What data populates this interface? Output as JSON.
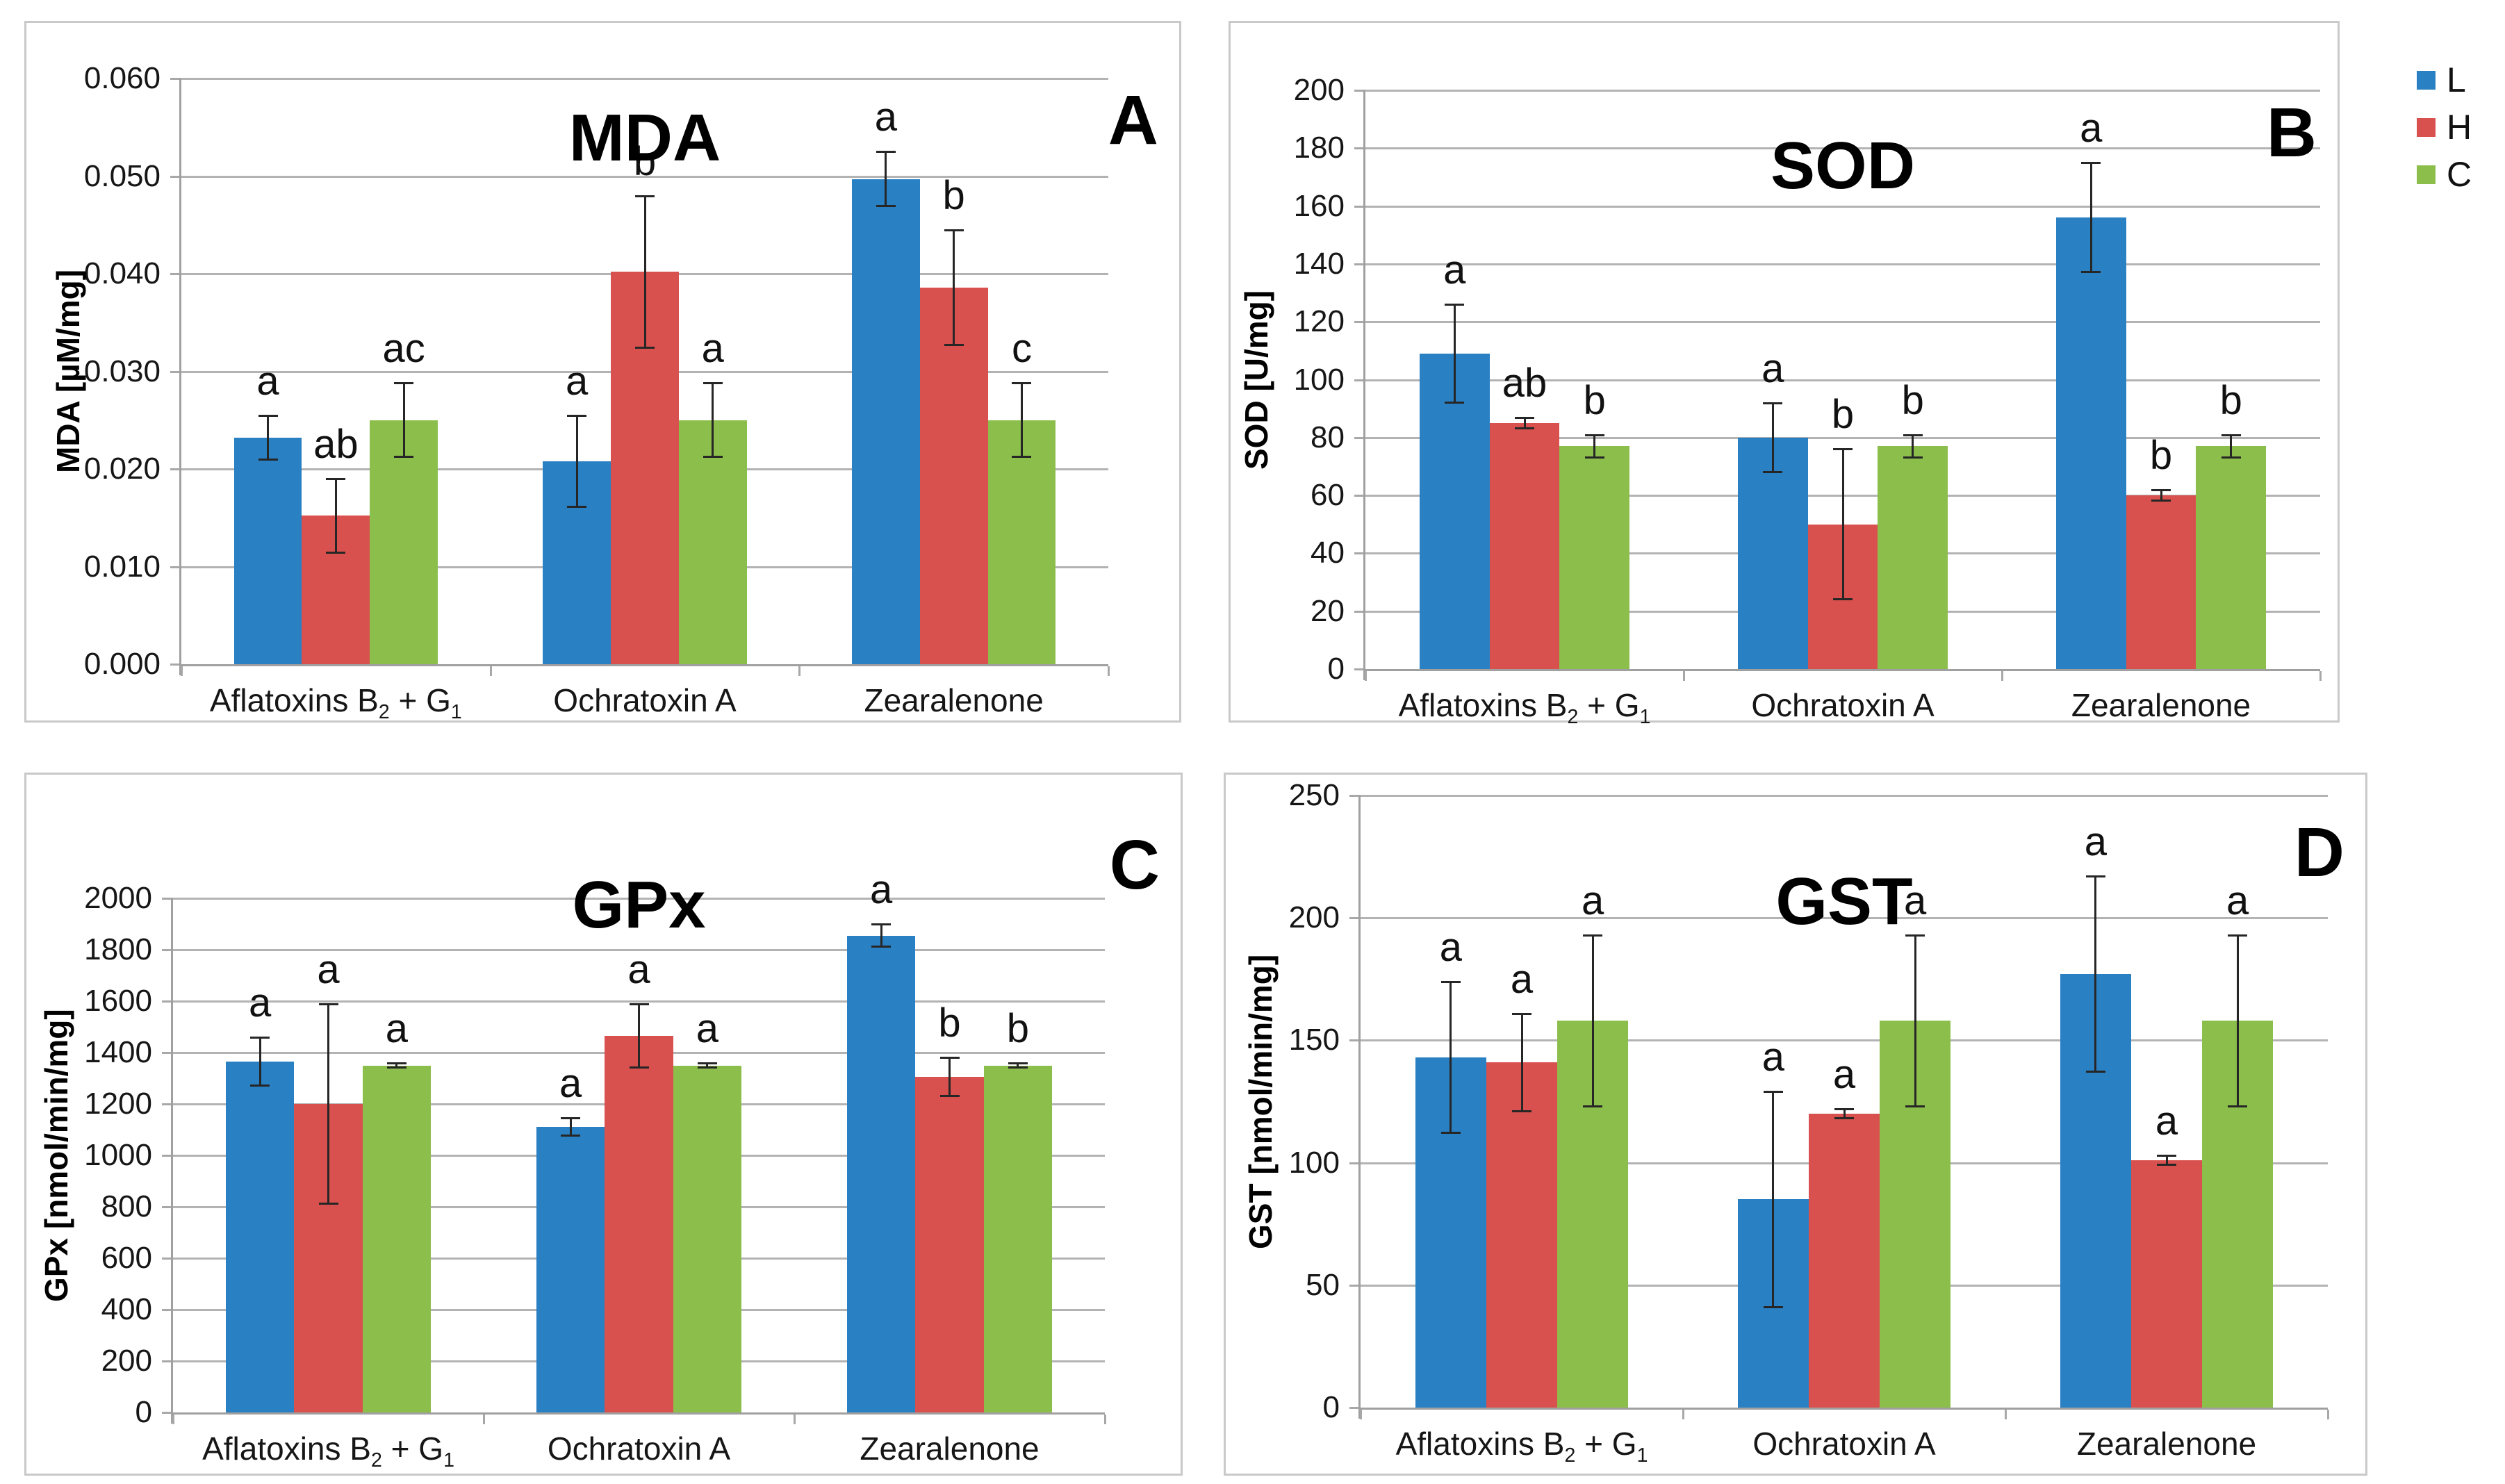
{
  "legend": {
    "position": "outside-top-right",
    "items": [
      {
        "label": "L",
        "color": "#2980C3"
      },
      {
        "label": "H",
        "color": "#D9514E"
      },
      {
        "label": "C",
        "color": "#8CBE4B"
      }
    ]
  },
  "chart_data": [
    {
      "id": "mda",
      "type": "bar",
      "title": "MDA",
      "panel_letter": "A",
      "ylabel": "MDA [µM/mg]",
      "xlabel": "",
      "ylim": [
        0,
        0.06
      ],
      "ystep": 0.01,
      "grid": true,
      "yticks": [
        "0.000",
        "0.010",
        "0.020",
        "0.030",
        "0.040",
        "0.050",
        "0.060"
      ],
      "categories": [
        {
          "label": "Aflatoxins B₂ + G₁",
          "segments": [
            {
              "t": "Aflatoxins B"
            },
            {
              "t": "2",
              "sub": true
            },
            {
              "t": " + G"
            },
            {
              "t": "1",
              "sub": true
            }
          ]
        },
        {
          "label": "Ochratoxin A",
          "segments": [
            {
              "t": "Ochratoxin A"
            }
          ]
        },
        {
          "label": "Zearalenone",
          "segments": [
            {
              "t": "Zearalenone"
            }
          ]
        }
      ],
      "series": [
        {
          "name": "L",
          "color": "#2980C3",
          "values": [
            0.0232,
            0.0208,
            0.0497
          ],
          "errors": [
            0.0023,
            0.0047,
            0.0028
          ],
          "sig_letters": [
            "a",
            "a",
            "a"
          ]
        },
        {
          "name": "H",
          "color": "#D9514E",
          "values": [
            0.0152,
            0.0402,
            0.0386
          ],
          "errors": [
            0.0038,
            0.0078,
            0.0059
          ],
          "sig_letters": [
            "ab",
            "b",
            "b"
          ]
        },
        {
          "name": "C",
          "color": "#8CBE4B",
          "values": [
            0.025,
            0.025,
            0.025
          ],
          "errors": [
            0.0038,
            0.0038,
            0.0038
          ],
          "sig_letters": [
            "ac",
            "a",
            "c"
          ]
        }
      ]
    },
    {
      "id": "sod",
      "type": "bar",
      "title": "SOD",
      "panel_letter": "B",
      "ylabel": "SOD [U/mg]",
      "xlabel": "",
      "ylim": [
        0,
        200
      ],
      "ystep": 20,
      "grid": true,
      "yticks": [
        "0",
        "20",
        "40",
        "60",
        "80",
        "100",
        "120",
        "140",
        "160",
        "180",
        "200"
      ],
      "categories": [
        {
          "label": "Aflatoxins B₂ + G₁",
          "segments": [
            {
              "t": "Aflatoxins B"
            },
            {
              "t": "2",
              "sub": true
            },
            {
              "t": " + G"
            },
            {
              "t": "1",
              "sub": true
            }
          ]
        },
        {
          "label": "Ochratoxin A",
          "segments": [
            {
              "t": "Ochratoxin A"
            }
          ]
        },
        {
          "label": "Zearalenone",
          "segments": [
            {
              "t": "Zearalenone"
            }
          ]
        }
      ],
      "series": [
        {
          "name": "L",
          "color": "#2980C3",
          "values": [
            109,
            80,
            156
          ],
          "errors": [
            17,
            12,
            19
          ],
          "sig_letters": [
            "a",
            "a",
            "a"
          ]
        },
        {
          "name": "H",
          "color": "#D9514E",
          "values": [
            85,
            50,
            60
          ],
          "errors": [
            2,
            26,
            2
          ],
          "sig_letters": [
            "ab",
            "b",
            "b"
          ]
        },
        {
          "name": "C",
          "color": "#8CBE4B",
          "values": [
            77,
            77,
            77
          ],
          "errors": [
            4,
            4,
            4
          ],
          "sig_letters": [
            "b",
            "b",
            "b"
          ]
        }
      ]
    },
    {
      "id": "gpx",
      "type": "bar",
      "title": "GPx",
      "panel_letter": "C",
      "ylabel": "GPx [nmol/min/mg]",
      "xlabel": "",
      "ylim": [
        0,
        2000
      ],
      "ystep": 200,
      "grid": true,
      "yticks": [
        "0",
        "200",
        "400",
        "600",
        "800",
        "1000",
        "1200",
        "1400",
        "1600",
        "1800",
        "2000"
      ],
      "categories": [
        {
          "label": "Aflatoxins B₂ + G₁",
          "segments": [
            {
              "t": "Aflatoxins B"
            },
            {
              "t": "2",
              "sub": true
            },
            {
              "t": " + G"
            },
            {
              "t": "1",
              "sub": true
            }
          ]
        },
        {
          "label": "Ochratoxin A",
          "segments": [
            {
              "t": "Ochratoxin A"
            }
          ]
        },
        {
          "label": "Zearalenone",
          "segments": [
            {
              "t": "Zearalenone"
            }
          ]
        }
      ],
      "series": [
        {
          "name": "L",
          "color": "#2980C3",
          "values": [
            1365,
            1110,
            1855
          ],
          "errors": [
            95,
            35,
            45
          ],
          "sig_letters": [
            "a",
            "a",
            "a"
          ]
        },
        {
          "name": "H",
          "color": "#D9514E",
          "values": [
            1200,
            1465,
            1305
          ],
          "errors": [
            390,
            125,
            75
          ],
          "sig_letters": [
            "a",
            "a",
            "b"
          ]
        },
        {
          "name": "C",
          "color": "#8CBE4B",
          "values": [
            1350,
            1350,
            1350
          ],
          "errors": [
            10,
            10,
            10
          ],
          "sig_letters": [
            "a",
            "a",
            "b"
          ]
        }
      ]
    },
    {
      "id": "gst",
      "type": "bar",
      "title": "GST",
      "panel_letter": "D",
      "ylabel": "GST [nmol/min/mg]",
      "xlabel": "",
      "ylim": [
        0,
        250
      ],
      "ystep": 50,
      "grid": true,
      "yticks": [
        "0",
        "50",
        "100",
        "150",
        "200",
        "250"
      ],
      "categories": [
        {
          "label": "Aflatoxins B₂ + G₁",
          "segments": [
            {
              "t": "Aflatoxins B"
            },
            {
              "t": "2",
              "sub": true
            },
            {
              "t": " + G"
            },
            {
              "t": "1",
              "sub": true
            }
          ]
        },
        {
          "label": "Ochratoxin A",
          "segments": [
            {
              "t": "Ochratoxin A"
            }
          ]
        },
        {
          "label": "Zearalenone",
          "segments": [
            {
              "t": "Zearalenone"
            }
          ]
        }
      ],
      "series": [
        {
          "name": "L",
          "color": "#2980C3",
          "values": [
            143,
            85,
            177
          ],
          "errors": [
            31,
            44,
            40
          ],
          "sig_letters": [
            "a",
            "a",
            "a"
          ]
        },
        {
          "name": "H",
          "color": "#D9514E",
          "values": [
            141,
            120,
            101
          ],
          "errors": [
            20,
            2,
            2
          ],
          "sig_letters": [
            "a",
            "a",
            "a"
          ]
        },
        {
          "name": "C",
          "color": "#8CBE4B",
          "values": [
            158,
            158,
            158
          ],
          "errors": [
            35,
            35,
            35
          ],
          "sig_letters": [
            "a",
            "a",
            "a"
          ]
        }
      ]
    }
  ]
}
